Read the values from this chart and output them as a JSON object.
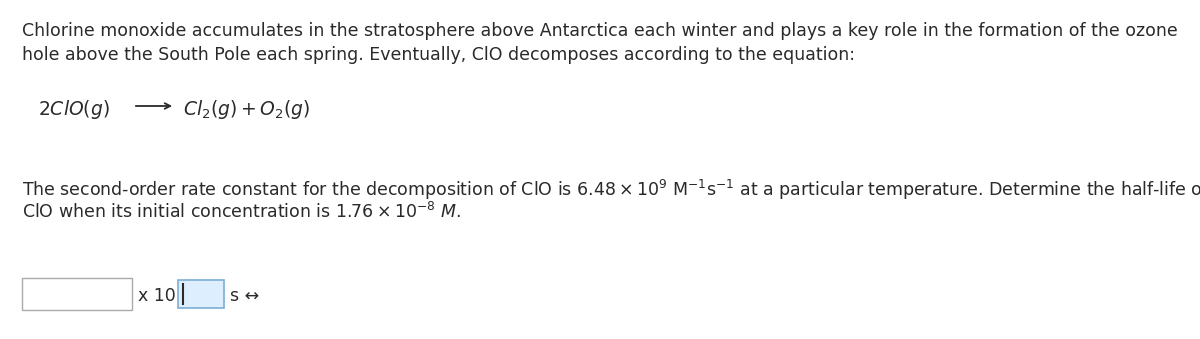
{
  "bg_color": "#ffffff",
  "text_color": "#2a2a2a",
  "line1": "Chlorine monoxide accumulates in the stratosphere above Antarctica each winter and plays a key role in the formation of the ozone",
  "line2": "hole above the South Pole each spring. Eventually, ClO decomposes according to the equation:",
  "line4": "The second-order rate constant for the decomposition of ClO is 6.48×10⁹ M⁻¹s⁻¹ at a particular temperature. Determine the half-life of",
  "line5": "ClO when its initial concentration is 1.76×10⁻⁸ M.",
  "font_size_body": 12.5,
  "font_size_eq": 13.5,
  "eq_line": "2ClO(g)   →   Cl₂(g) + O₂(g)"
}
